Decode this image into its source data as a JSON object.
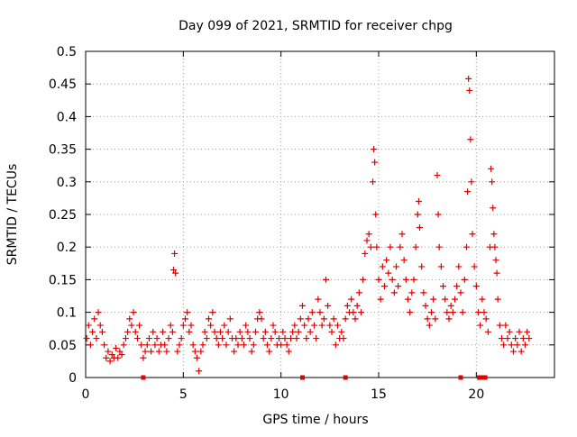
{
  "chart_data": {
    "type": "scatter",
    "title": "Day 099 of 2021, SRMTID for receiver chpg",
    "xlabel": "GPS time / hours",
    "ylabel": "SRMTID / TECUs",
    "xlim": [
      0,
      24
    ],
    "ylim": [
      0,
      0.5
    ],
    "xticks": [
      0,
      5,
      10,
      15,
      20
    ],
    "xtick_labels": [
      "0",
      "5",
      "10",
      "15",
      "20"
    ],
    "yticks": [
      0,
      0.05,
      0.1,
      0.15,
      0.2,
      0.25,
      0.3,
      0.35,
      0.4,
      0.45,
      0.5
    ],
    "ytick_labels": [
      "0",
      "0.05",
      "0.1",
      "0.15",
      "0.2",
      "0.25",
      "0.3",
      "0.35",
      "0.4",
      "0.45",
      "0.5"
    ],
    "grid": true,
    "legend": "none",
    "marker": "+",
    "colors": {
      "series": "#e00000",
      "axis": "#000000",
      "grid": "#a0a0a0"
    },
    "series": [
      {
        "name": "SRMTID",
        "points": [
          [
            0.05,
            0.06
          ],
          [
            0.15,
            0.08
          ],
          [
            0.25,
            0.05
          ],
          [
            0.35,
            0.07
          ],
          [
            0.45,
            0.09
          ],
          [
            0.55,
            0.06
          ],
          [
            0.65,
            0.1
          ],
          [
            0.75,
            0.08
          ],
          [
            0.85,
            0.07
          ],
          [
            0.95,
            0.05
          ],
          [
            1.05,
            0.03
          ],
          [
            1.15,
            0.04
          ],
          [
            1.25,
            0.025
          ],
          [
            1.35,
            0.035
          ],
          [
            1.45,
            0.03
          ],
          [
            1.55,
            0.045
          ],
          [
            1.65,
            0.03
          ],
          [
            1.75,
            0.04
          ],
          [
            1.85,
            0.035
          ],
          [
            1.95,
            0.05
          ],
          [
            2.05,
            0.06
          ],
          [
            2.15,
            0.07
          ],
          [
            2.25,
            0.09
          ],
          [
            2.35,
            0.08
          ],
          [
            2.45,
            0.1
          ],
          [
            2.55,
            0.07
          ],
          [
            2.65,
            0.06
          ],
          [
            2.75,
            0.08
          ],
          [
            2.85,
            0.05
          ],
          [
            2.95,
            0.03
          ],
          [
            3.05,
            0.04
          ],
          [
            3.15,
            0.05
          ],
          [
            3.25,
            0.06
          ],
          [
            3.35,
            0.04
          ],
          [
            3.45,
            0.07
          ],
          [
            3.55,
            0.05
          ],
          [
            3.65,
            0.06
          ],
          [
            3.75,
            0.04
          ],
          [
            3.85,
            0.05
          ],
          [
            3.95,
            0.07
          ],
          [
            4.05,
            0.05
          ],
          [
            4.15,
            0.04
          ],
          [
            4.25,
            0.06
          ],
          [
            4.35,
            0.08
          ],
          [
            4.45,
            0.07
          ],
          [
            4.5,
            0.165
          ],
          [
            4.55,
            0.19
          ],
          [
            4.6,
            0.16
          ],
          [
            4.7,
            0.04
          ],
          [
            4.8,
            0.05
          ],
          [
            4.9,
            0.06
          ],
          [
            5.0,
            0.08
          ],
          [
            5.1,
            0.09
          ],
          [
            5.2,
            0.1
          ],
          [
            5.3,
            0.07
          ],
          [
            5.4,
            0.08
          ],
          [
            5.5,
            0.05
          ],
          [
            5.6,
            0.04
          ],
          [
            5.7,
            0.03
          ],
          [
            5.8,
            0.01
          ],
          [
            5.9,
            0.04
          ],
          [
            6.0,
            0.05
          ],
          [
            6.1,
            0.07
          ],
          [
            6.2,
            0.06
          ],
          [
            6.3,
            0.09
          ],
          [
            6.4,
            0.08
          ],
          [
            6.5,
            0.1
          ],
          [
            6.6,
            0.07
          ],
          [
            6.7,
            0.06
          ],
          [
            6.8,
            0.05
          ],
          [
            6.9,
            0.07
          ],
          [
            7.0,
            0.06
          ],
          [
            7.1,
            0.08
          ],
          [
            7.2,
            0.05
          ],
          [
            7.3,
            0.07
          ],
          [
            7.4,
            0.09
          ],
          [
            7.5,
            0.06
          ],
          [
            7.6,
            0.04
          ],
          [
            7.7,
            0.06
          ],
          [
            7.8,
            0.05
          ],
          [
            7.9,
            0.07
          ],
          [
            8.0,
            0.06
          ],
          [
            8.1,
            0.05
          ],
          [
            8.2,
            0.08
          ],
          [
            8.3,
            0.07
          ],
          [
            8.4,
            0.06
          ],
          [
            8.5,
            0.04
          ],
          [
            8.6,
            0.05
          ],
          [
            8.7,
            0.07
          ],
          [
            8.8,
            0.09
          ],
          [
            8.9,
            0.1
          ],
          [
            9.0,
            0.09
          ],
          [
            9.1,
            0.06
          ],
          [
            9.2,
            0.07
          ],
          [
            9.3,
            0.05
          ],
          [
            9.4,
            0.04
          ],
          [
            9.5,
            0.06
          ],
          [
            9.6,
            0.08
          ],
          [
            9.7,
            0.07
          ],
          [
            9.8,
            0.05
          ],
          [
            9.9,
            0.06
          ],
          [
            10.0,
            0.05
          ],
          [
            10.1,
            0.07
          ],
          [
            10.2,
            0.06
          ],
          [
            10.3,
            0.05
          ],
          [
            10.4,
            0.04
          ],
          [
            10.5,
            0.06
          ],
          [
            10.6,
            0.07
          ],
          [
            10.7,
            0.08
          ],
          [
            10.8,
            0.06
          ],
          [
            10.9,
            0.07
          ],
          [
            11.0,
            0.09
          ],
          [
            11.1,
            0.11
          ],
          [
            11.2,
            0.08
          ],
          [
            11.3,
            0.06
          ],
          [
            11.4,
            0.09
          ],
          [
            11.5,
            0.07
          ],
          [
            11.6,
            0.1
          ],
          [
            11.7,
            0.08
          ],
          [
            11.8,
            0.06
          ],
          [
            11.9,
            0.12
          ],
          [
            12.0,
            0.1
          ],
          [
            12.1,
            0.08
          ],
          [
            12.2,
            0.09
          ],
          [
            12.3,
            0.15
          ],
          [
            12.4,
            0.11
          ],
          [
            12.5,
            0.08
          ],
          [
            12.6,
            0.07
          ],
          [
            12.7,
            0.09
          ],
          [
            12.8,
            0.05
          ],
          [
            12.9,
            0.08
          ],
          [
            13.0,
            0.06
          ],
          [
            13.1,
            0.07
          ],
          [
            13.2,
            0.06
          ],
          [
            13.3,
            0.09
          ],
          [
            13.4,
            0.11
          ],
          [
            13.5,
            0.1
          ],
          [
            13.6,
            0.12
          ],
          [
            13.7,
            0.1
          ],
          [
            13.8,
            0.09
          ],
          [
            13.9,
            0.11
          ],
          [
            14.0,
            0.13
          ],
          [
            14.1,
            0.1
          ],
          [
            14.2,
            0.15
          ],
          [
            14.3,
            0.19
          ],
          [
            14.4,
            0.21
          ],
          [
            14.5,
            0.22
          ],
          [
            14.6,
            0.2
          ],
          [
            14.7,
            0.3
          ],
          [
            14.75,
            0.35
          ],
          [
            14.8,
            0.33
          ],
          [
            14.85,
            0.25
          ],
          [
            14.9,
            0.2
          ],
          [
            15.0,
            0.15
          ],
          [
            15.1,
            0.12
          ],
          [
            15.2,
            0.17
          ],
          [
            15.3,
            0.14
          ],
          [
            15.4,
            0.18
          ],
          [
            15.5,
            0.16
          ],
          [
            15.6,
            0.2
          ],
          [
            15.7,
            0.15
          ],
          [
            15.8,
            0.13
          ],
          [
            15.9,
            0.17
          ],
          [
            16.0,
            0.14
          ],
          [
            16.1,
            0.2
          ],
          [
            16.2,
            0.22
          ],
          [
            16.3,
            0.18
          ],
          [
            16.4,
            0.15
          ],
          [
            16.5,
            0.12
          ],
          [
            16.6,
            0.1
          ],
          [
            16.7,
            0.13
          ],
          [
            16.8,
            0.15
          ],
          [
            16.9,
            0.2
          ],
          [
            17.0,
            0.25
          ],
          [
            17.05,
            0.27
          ],
          [
            17.1,
            0.23
          ],
          [
            17.2,
            0.17
          ],
          [
            17.3,
            0.13
          ],
          [
            17.4,
            0.11
          ],
          [
            17.5,
            0.09
          ],
          [
            17.6,
            0.08
          ],
          [
            17.7,
            0.1
          ],
          [
            17.8,
            0.12
          ],
          [
            17.9,
            0.09
          ],
          [
            18.0,
            0.31
          ],
          [
            18.05,
            0.25
          ],
          [
            18.1,
            0.2
          ],
          [
            18.2,
            0.17
          ],
          [
            18.3,
            0.14
          ],
          [
            18.4,
            0.12
          ],
          [
            18.5,
            0.1
          ],
          [
            18.6,
            0.09
          ],
          [
            18.7,
            0.11
          ],
          [
            18.8,
            0.1
          ],
          [
            18.9,
            0.12
          ],
          [
            19.0,
            0.14
          ],
          [
            19.1,
            0.17
          ],
          [
            19.2,
            0.13
          ],
          [
            19.3,
            0.1
          ],
          [
            19.4,
            0.15
          ],
          [
            19.5,
            0.2
          ],
          [
            19.55,
            0.285
          ],
          [
            19.6,
            0.458
          ],
          [
            19.65,
            0.44
          ],
          [
            19.7,
            0.365
          ],
          [
            19.75,
            0.3
          ],
          [
            19.8,
            0.22
          ],
          [
            19.9,
            0.17
          ],
          [
            20.0,
            0.14
          ],
          [
            20.1,
            0.1
          ],
          [
            20.2,
            0.08
          ],
          [
            20.3,
            0.12
          ],
          [
            20.4,
            0.1
          ],
          [
            20.5,
            0.09
          ],
          [
            20.6,
            0.07
          ],
          [
            20.7,
            0.2
          ],
          [
            20.75,
            0.32
          ],
          [
            20.8,
            0.3
          ],
          [
            20.85,
            0.26
          ],
          [
            20.9,
            0.22
          ],
          [
            20.95,
            0.2
          ],
          [
            21.0,
            0.18
          ],
          [
            21.05,
            0.16
          ],
          [
            21.1,
            0.12
          ],
          [
            21.2,
            0.08
          ],
          [
            21.3,
            0.06
          ],
          [
            21.4,
            0.05
          ],
          [
            21.5,
            0.08
          ],
          [
            21.6,
            0.06
          ],
          [
            21.7,
            0.07
          ],
          [
            21.8,
            0.05
          ],
          [
            21.9,
            0.04
          ],
          [
            22.0,
            0.06
          ],
          [
            22.1,
            0.05
          ],
          [
            22.2,
            0.07
          ],
          [
            22.3,
            0.04
          ],
          [
            22.4,
            0.06
          ],
          [
            22.5,
            0.05
          ],
          [
            22.6,
            0.07
          ],
          [
            22.7,
            0.06
          ]
        ]
      }
    ],
    "axis_markers": [
      2.95,
      11.1,
      13.3,
      19.2,
      20.15,
      20.3,
      20.45
    ]
  }
}
